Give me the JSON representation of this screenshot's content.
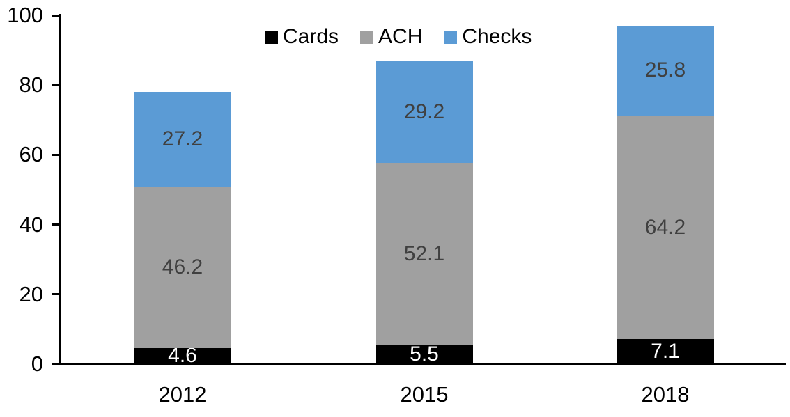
{
  "chart_data": {
    "type": "bar",
    "stacked": true,
    "title": "",
    "xlabel": "",
    "ylabel": "",
    "ylim": [
      0,
      100
    ],
    "yticks": [
      0,
      20,
      40,
      60,
      80,
      100
    ],
    "grid": false,
    "legend_position": "top-center",
    "axis_color": "#000000",
    "categories": [
      "2012",
      "2015",
      "2018"
    ],
    "series": [
      {
        "name": "Cards",
        "color": "#000000",
        "label_color": "#ffffff",
        "values": [
          4.6,
          5.5,
          7.1
        ]
      },
      {
        "name": "ACH",
        "color": "#a0a0a0",
        "label_color": "#404040",
        "values": [
          46.2,
          52.1,
          64.2
        ]
      },
      {
        "name": "Checks",
        "color": "#5b9bd5",
        "label_color": "#404040",
        "values": [
          27.2,
          29.2,
          25.8
        ]
      }
    ]
  }
}
